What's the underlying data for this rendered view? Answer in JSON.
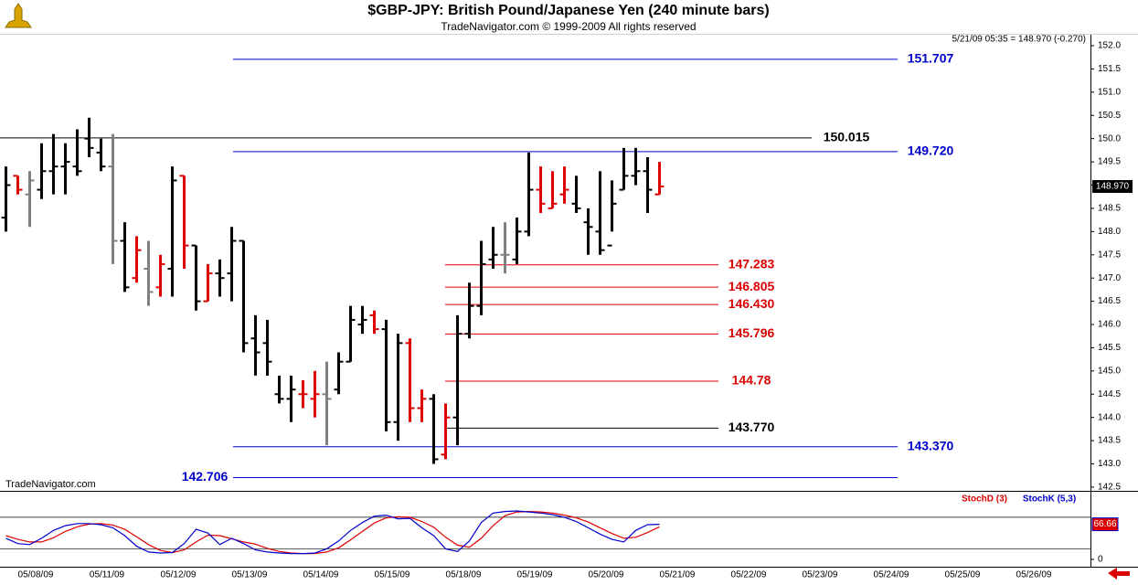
{
  "chart_data": {
    "type": "ohlc",
    "title": "$GBP-JPY:  British Pound/Japanese Yen  (240 minute bars)",
    "subtitle": "TradeNavigator.com © 1999-2009 All rights reserved",
    "info": "5/21/09 05:35 = 148.970 (-0.270)",
    "watermark": "TradeNavigator.com",
    "last_label": "148.970",
    "ylim": [
      142.42,
      152.236
    ],
    "yticks": [
      142.5,
      {
        "value": 143,
        "label": "143.0"
      },
      143.5,
      {
        "value": 144,
        "label": "144.0"
      },
      144.5,
      {
        "value": 145,
        "label": "145.0"
      },
      145.5,
      {
        "value": 146,
        "label": "146.0"
      },
      146.5,
      {
        "value": 147,
        "label": "147.0"
      },
      147.5,
      {
        "value": 148,
        "label": "148.0"
      },
      148.5,
      {
        "value": 149,
        "label": "149.0"
      },
      149.5,
      {
        "value": 150,
        "label": "150.0"
      },
      150.5,
      {
        "value": 151,
        "label": "151.0"
      },
      151.5,
      {
        "value": 152,
        "label": "152.0"
      }
    ],
    "levels": [
      {
        "value": 151.707,
        "color": "#0000cc"
      },
      {
        "value": 150.015,
        "color": "#000000"
      },
      {
        "value": {
          "value": 149.72,
          "label": "149.720"
        },
        "color": "#0000cc"
      },
      {
        "value": 147.283,
        "color": "#dd0000"
      },
      {
        "value": 146.805,
        "color": "#dd0000"
      },
      {
        "value": {
          "value": 146.43,
          "label": "146.430"
        },
        "color": "#dd0000"
      },
      {
        "value": 145.796,
        "color": "#dd0000"
      },
      {
        "value": 144.78,
        "color": "#dd0000"
      },
      {
        "value": {
          "value": 143.77,
          "label": "143.770"
        },
        "color": "#000000"
      },
      {
        "value": {
          "value": 143.37,
          "label": "143.370"
        },
        "color": "#0000cc"
      },
      {
        "value": 142.706,
        "color": "#0000cc"
      }
    ],
    "days": [
      {
        "label": "05/08/09",
        "bars": [
          {
            "open": 148.3,
            "high": 149.4,
            "low": 148.0,
            "close": 149.0,
            "color": "#000000"
          },
          {
            "open": 149.2,
            "high": 149.2,
            "low": 148.8,
            "close": 148.9,
            "color": "#dd0000"
          },
          {
            "open": 148.8,
            "high": 149.3,
            "low": 148.1,
            "close": 149.1,
            "color": "#808080"
          },
          {
            "open": 148.9,
            "high": 149.9,
            "low": 148.7,
            "close": 149.3,
            "color": "#000000"
          },
          {
            "open": 149.3,
            "high": 150.1,
            "low": 148.8,
            "close": 149.4,
            "color": "#000000"
          },
          {
            "open": 149.4,
            "high": 149.9,
            "low": 148.8,
            "close": 149.5,
            "color": "#000000"
          }
        ]
      },
      {
        "label": "05/11/09",
        "bars": [
          {
            "open": 149.4,
            "high": 150.2,
            "low": 149.2,
            "close": 149.3,
            "color": "#000000"
          },
          {
            "open": 150.0,
            "high": 150.45,
            "low": 149.6,
            "close": 149.8,
            "color": "#000000"
          },
          {
            "open": 149.7,
            "high": 150.0,
            "low": 149.3,
            "close": 149.4,
            "color": "#000000"
          },
          {
            "open": 149.4,
            "high": 150.1,
            "low": 147.3,
            "close": 147.8,
            "color": "#808080"
          },
          {
            "open": 147.8,
            "high": 148.2,
            "low": 146.7,
            "close": 146.8,
            "color": "#000000"
          },
          {
            "open": 147.0,
            "high": 147.9,
            "low": 146.9,
            "close": 147.6,
            "color": "#dd0000"
          }
        ]
      },
      {
        "label": "05/12/09",
        "bars": [
          {
            "open": 147.2,
            "high": 147.8,
            "low": 146.4,
            "close": 146.7,
            "color": "#808080"
          },
          {
            "open": 146.8,
            "high": 147.5,
            "low": 146.6,
            "close": 147.3,
            "color": "#dd0000"
          },
          {
            "open": 147.2,
            "high": 149.4,
            "low": 146.6,
            "close": 149.1,
            "color": "#000000"
          },
          {
            "open": 149.2,
            "high": 149.2,
            "low": 147.2,
            "close": 147.7,
            "color": "#dd0000"
          },
          {
            "open": 147.7,
            "high": 147.7,
            "low": 146.3,
            "close": 146.5,
            "color": "#000000"
          },
          {
            "open": 146.5,
            "high": 147.3,
            "low": 146.5,
            "close": 147.1,
            "color": "#dd0000"
          }
        ]
      },
      {
        "label": "05/13/09",
        "bars": [
          {
            "open": 147.1,
            "high": 147.4,
            "low": 146.6,
            "close": 147.0,
            "color": "#000000"
          },
          {
            "open": 147.1,
            "high": 148.1,
            "low": 146.5,
            "close": 147.8,
            "color": "#000000"
          },
          {
            "open": 147.8,
            "high": 147.8,
            "low": 145.4,
            "close": 145.6,
            "color": "#000000"
          },
          {
            "open": 145.7,
            "high": 146.2,
            "low": 144.9,
            "close": 145.4,
            "color": "#000000"
          },
          {
            "open": 145.6,
            "high": 146.1,
            "low": 144.9,
            "close": 145.2,
            "color": "#000000"
          },
          {
            "open": 144.5,
            "high": 144.9,
            "low": 144.3,
            "close": 144.4,
            "color": "#000000"
          }
        ]
      },
      {
        "label": "05/14/09",
        "bars": [
          {
            "open": 144.4,
            "high": 144.9,
            "low": 143.9,
            "close": 144.6,
            "color": "#000000"
          },
          {
            "open": 144.5,
            "high": 144.8,
            "low": 144.2,
            "close": 144.5,
            "color": "#dd0000"
          },
          {
            "open": 144.4,
            "high": 145.0,
            "low": 144.0,
            "close": 144.5,
            "color": "#dd0000"
          },
          {
            "open": 144.5,
            "high": 145.2,
            "low": 143.4,
            "close": 144.4,
            "color": "#808080"
          },
          {
            "open": 144.6,
            "high": 145.4,
            "low": 144.5,
            "close": 145.2,
            "color": "#000000"
          },
          {
            "open": 145.2,
            "high": 146.4,
            "low": 145.2,
            "close": 146.1,
            "color": "#000000"
          }
        ]
      },
      {
        "label": "05/15/09",
        "bars": [
          {
            "open": 146.0,
            "high": 146.4,
            "low": 145.8,
            "close": 146.1,
            "color": "#000000"
          },
          {
            "open": 146.2,
            "high": 146.3,
            "low": 145.8,
            "close": 145.9,
            "color": "#dd0000"
          },
          {
            "open": 145.9,
            "high": 146.1,
            "low": 143.7,
            "close": 143.9,
            "color": "#000000"
          },
          {
            "open": 143.9,
            "high": 145.8,
            "low": 143.5,
            "close": 145.6,
            "color": "#000000"
          },
          {
            "open": 145.6,
            "high": 145.7,
            "low": 143.9,
            "close": 144.2,
            "color": "#dd0000"
          },
          {
            "open": 144.2,
            "high": 144.6,
            "low": 143.9,
            "close": 144.4,
            "color": "#dd0000"
          }
        ]
      },
      {
        "label": "05/18/09",
        "bars": [
          {
            "open": 144.4,
            "high": 144.5,
            "low": 143.0,
            "close": 143.1,
            "color": "#000000"
          },
          {
            "open": 143.2,
            "high": 144.3,
            "low": 143.1,
            "close": 144.0,
            "color": "#dd0000"
          },
          {
            "open": 144.0,
            "high": 146.2,
            "low": 143.4,
            "close": 145.8,
            "color": "#000000"
          },
          {
            "open": 145.8,
            "high": 146.9,
            "low": 145.7,
            "close": 146.4,
            "color": "#000000"
          },
          {
            "open": 146.4,
            "high": 147.8,
            "low": 146.2,
            "close": 147.3,
            "color": "#000000"
          },
          {
            "open": 147.4,
            "high": 148.1,
            "low": 147.2,
            "close": 147.5,
            "color": "#000000"
          }
        ]
      },
      {
        "label": "05/19/09",
        "bars": [
          {
            "open": 147.5,
            "high": 148.2,
            "low": 147.1,
            "close": 147.5,
            "color": "#808080"
          },
          {
            "open": 147.4,
            "high": 148.3,
            "low": 147.3,
            "close": 148.0,
            "color": "#000000"
          },
          {
            "open": 148.0,
            "high": 149.7,
            "low": 147.9,
            "close": 148.9,
            "color": "#000000"
          },
          {
            "open": 148.9,
            "high": 149.4,
            "low": 148.4,
            "close": 148.6,
            "color": "#dd0000"
          },
          {
            "open": 148.5,
            "high": 149.3,
            "low": 148.5,
            "close": 148.6,
            "color": "#dd0000"
          },
          {
            "open": 148.8,
            "high": 149.4,
            "low": 148.6,
            "close": 148.9,
            "color": "#dd0000"
          }
        ]
      },
      {
        "label": "05/20/09",
        "bars": [
          {
            "open": 148.6,
            "high": 149.2,
            "low": 148.4,
            "close": 148.5,
            "color": "#000000"
          },
          {
            "open": 148.2,
            "high": 148.5,
            "low": 147.5,
            "close": 148.1,
            "color": "#000000"
          },
          {
            "open": 148.0,
            "high": 149.3,
            "low": 147.5,
            "close": 147.6,
            "color": "#000000"
          },
          {
            "open": 147.7,
            "high": 149.1,
            "low": 148.0,
            "close": 148.6,
            "color": "#000000"
          },
          {
            "open": 148.9,
            "high": 149.8,
            "low": 148.9,
            "close": 149.2,
            "color": "#000000"
          },
          {
            "open": 149.2,
            "high": 149.8,
            "low": 149.0,
            "close": 149.3,
            "color": "#000000"
          }
        ]
      },
      {
        "label": "05/21/09",
        "bars": [
          {
            "open": 149.3,
            "high": 149.6,
            "low": 148.4,
            "close": 148.9,
            "color": "#000000"
          },
          {
            "open": 148.8,
            "high": 149.5,
            "low": 148.8,
            "close": 148.97,
            "color": "#dd0000"
          }
        ]
      },
      {
        "label": "05/22/09",
        "bars": []
      },
      {
        "label": "05/23/09",
        "bars": []
      },
      {
        "label": "05/24/09",
        "bars": []
      },
      {
        "label": "05/25/09",
        "bars": []
      },
      {
        "label": "05/26/09",
        "bars": []
      }
    ],
    "stochastic": {
      "ylim": [
        -14,
        125
      ],
      "yticks": [
        0
      ],
      "levels": [
        20,
        80
      ],
      "series": [
        {
          "name": "StochD (3)",
          "color": "#dd0000",
          "values": [
            45,
            38,
            33,
            33,
            41,
            53,
            62,
            67,
            68,
            65,
            57,
            43,
            28,
            17,
            13,
            18,
            33,
            46,
            45,
            39,
            33,
            29,
            21,
            15,
            12,
            11,
            11,
            14,
            22,
            37,
            53,
            69,
            79,
            81,
            80,
            72,
            61,
            42,
            27,
            23,
            40,
            64,
            83,
            90,
            91,
            90,
            88,
            84,
            79,
            71,
            60,
            49,
            40,
            42,
            51,
            62
          ]
        },
        {
          "name": "StochK (5,3)",
          "color": "#0000cc",
          "values": [
            40,
            30,
            28,
            40,
            55,
            64,
            68,
            68,
            66,
            60,
            45,
            25,
            14,
            12,
            13,
            30,
            57,
            50,
            28,
            40,
            30,
            18,
            14,
            12,
            11,
            11,
            12,
            20,
            35,
            55,
            70,
            82,
            84,
            77,
            78,
            60,
            45,
            20,
            15,
            35,
            70,
            88,
            91,
            92,
            90,
            88,
            85,
            80,
            72,
            60,
            48,
            38,
            33,
            55,
            66,
            66.66
          ]
        }
      ]
    }
  }
}
